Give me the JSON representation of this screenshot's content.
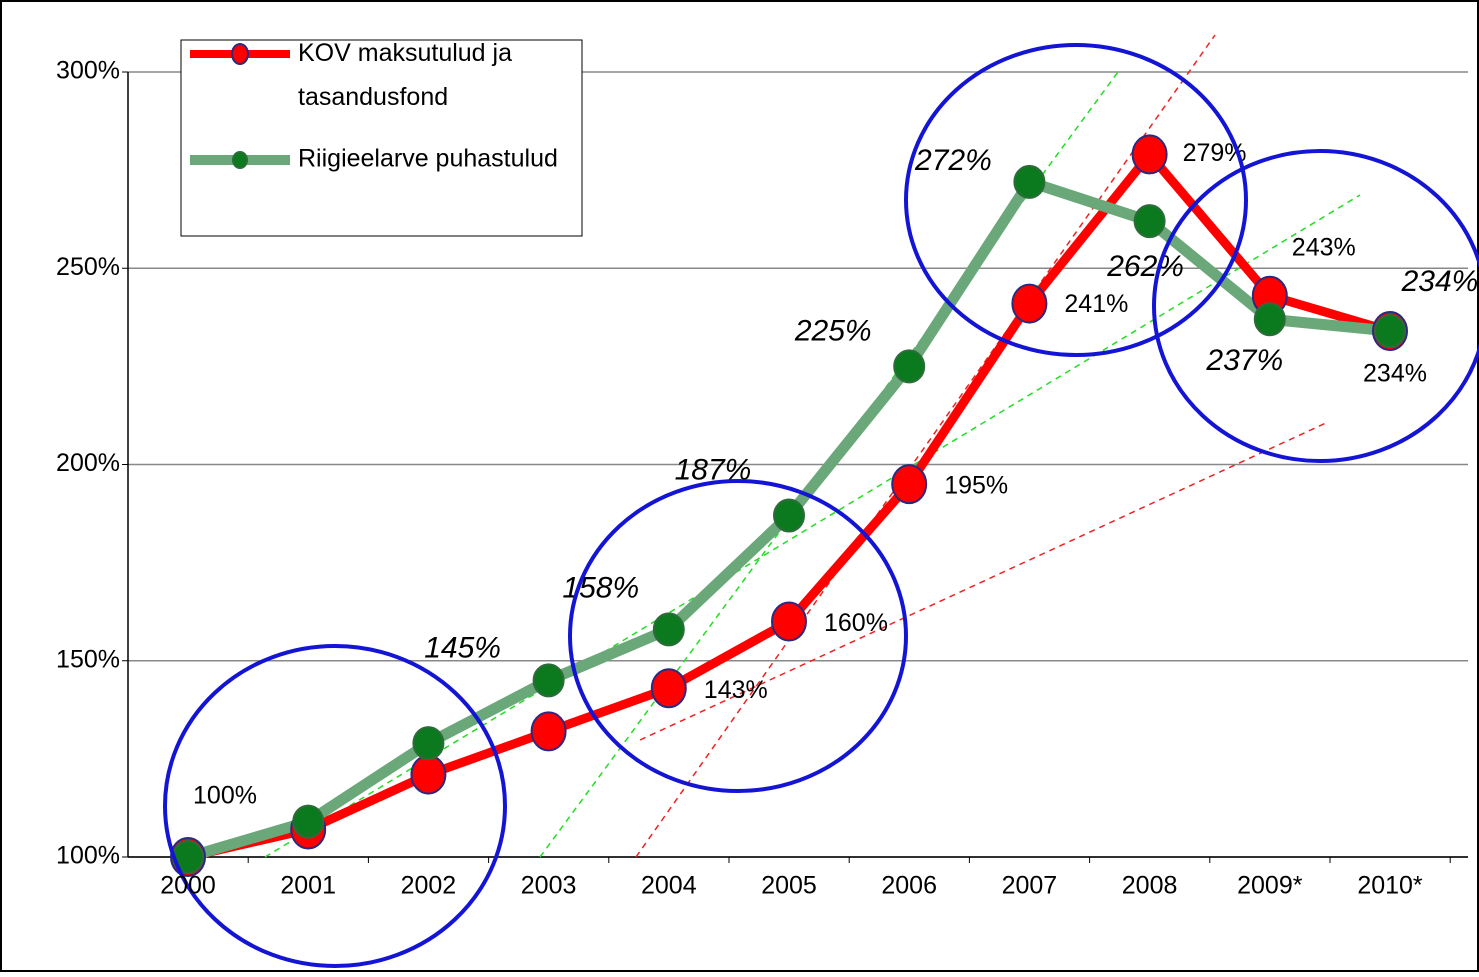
{
  "chart_data": {
    "type": "line",
    "categories": [
      "2000",
      "2001",
      "2002",
      "2003",
      "2004",
      "2005",
      "2006",
      "2007",
      "2008",
      "2009*",
      "2010*"
    ],
    "series": [
      {
        "name": "KOV maksutulud ja tasandusfond",
        "color": "#ff0000",
        "marker_color": "#ff0000",
        "values": [
          100,
          107,
          121,
          132,
          143,
          160,
          195,
          241,
          279,
          243,
          234
        ],
        "value_labels": [
          "100%",
          null,
          null,
          null,
          "143%",
          "160%",
          "195%",
          "241%",
          "279%",
          "243%",
          "234%"
        ]
      },
      {
        "name": "Riigieelarve puhastulud",
        "color": "#6aa87a",
        "marker_color": "#0b7a1e",
        "values": [
          100,
          109,
          129,
          145,
          158,
          187,
          225,
          272,
          262,
          237,
          234
        ],
        "value_labels": [
          null,
          null,
          null,
          "145%",
          "158%",
          "187%",
          "225%",
          "272%",
          "262%",
          "237%",
          "234%"
        ]
      }
    ],
    "ylim": [
      100,
      300
    ],
    "yticks": [
      {
        "value": 100,
        "label": "100%"
      },
      {
        "value": 150,
        "label": "150%"
      },
      {
        "value": 200,
        "label": "200%"
      },
      {
        "value": 250,
        "label": "250%"
      },
      {
        "value": 300,
        "label": "300%"
      }
    ],
    "grid": true,
    "legend": "top-left"
  }
}
